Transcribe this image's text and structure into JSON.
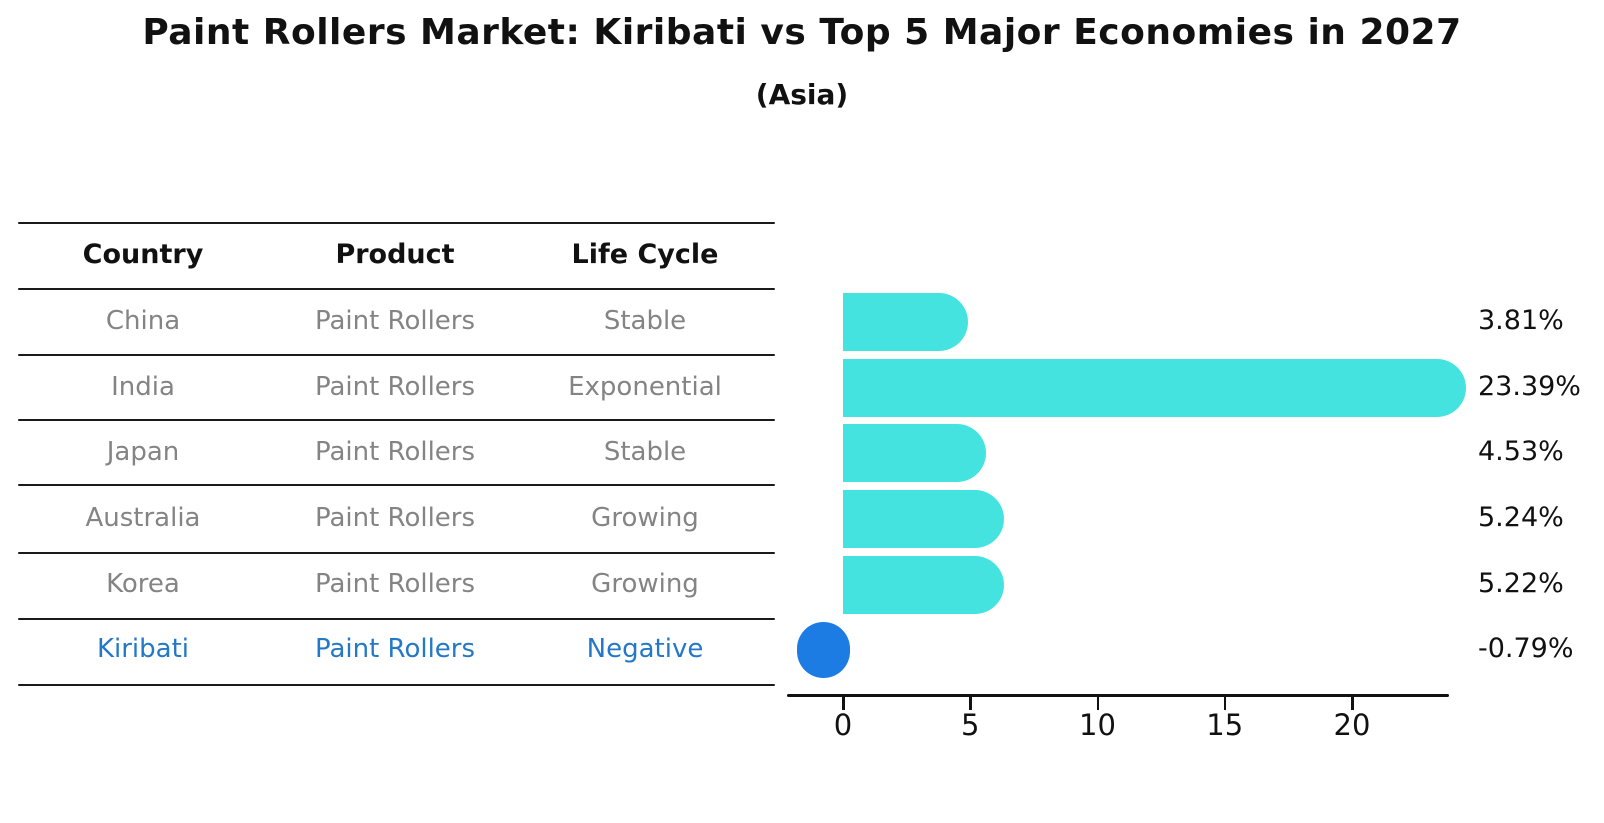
{
  "title": "Paint Rollers Market: Kiribati vs Top 5 Major Economies in 2027",
  "subtitle": "(Asia)",
  "table": {
    "headers": [
      "Country",
      "Product",
      "Life Cycle"
    ],
    "rows": [
      {
        "country": "China",
        "product": "Paint Rollers",
        "life_cycle": "Stable",
        "highlight": false
      },
      {
        "country": "India",
        "product": "Paint Rollers",
        "life_cycle": "Exponential",
        "highlight": false
      },
      {
        "country": "Japan",
        "product": "Paint Rollers",
        "life_cycle": "Stable",
        "highlight": false
      },
      {
        "country": "Australia",
        "product": "Paint Rollers",
        "life_cycle": "Growing",
        "highlight": false
      },
      {
        "country": "Korea",
        "product": "Paint Rollers",
        "life_cycle": "Growing",
        "highlight": false
      },
      {
        "country": "Kiribati",
        "product": "Paint Rollers",
        "life_cycle": "Negative",
        "highlight": true
      }
    ]
  },
  "chart_data": {
    "type": "bar",
    "orientation": "horizontal",
    "title": "Paint Rollers Market: Kiribati vs Top 5 Major Economies in 2027",
    "subtitle": "(Asia)",
    "categories": [
      "China",
      "India",
      "Japan",
      "Australia",
      "Korea",
      "Kiribati"
    ],
    "values": [
      3.81,
      23.39,
      4.53,
      5.24,
      5.22,
      -0.79
    ],
    "value_labels": [
      "3.81%",
      "23.39%",
      "4.53%",
      "5.24%",
      "5.22%",
      "-0.79%"
    ],
    "unit": "%",
    "x_ticks": [
      0,
      5,
      10,
      15,
      20
    ],
    "xlim": [
      -2.2,
      23.8
    ],
    "grid": false,
    "legend": "none",
    "bar_color": "#45e3e0",
    "negative_bar_color": "#1d7ce4",
    "highlight_text_color": "#2478c8"
  },
  "colors": {
    "background": "#ffffff",
    "text": "#111111",
    "muted_text": "#848484",
    "line": "#1a1a1a"
  }
}
